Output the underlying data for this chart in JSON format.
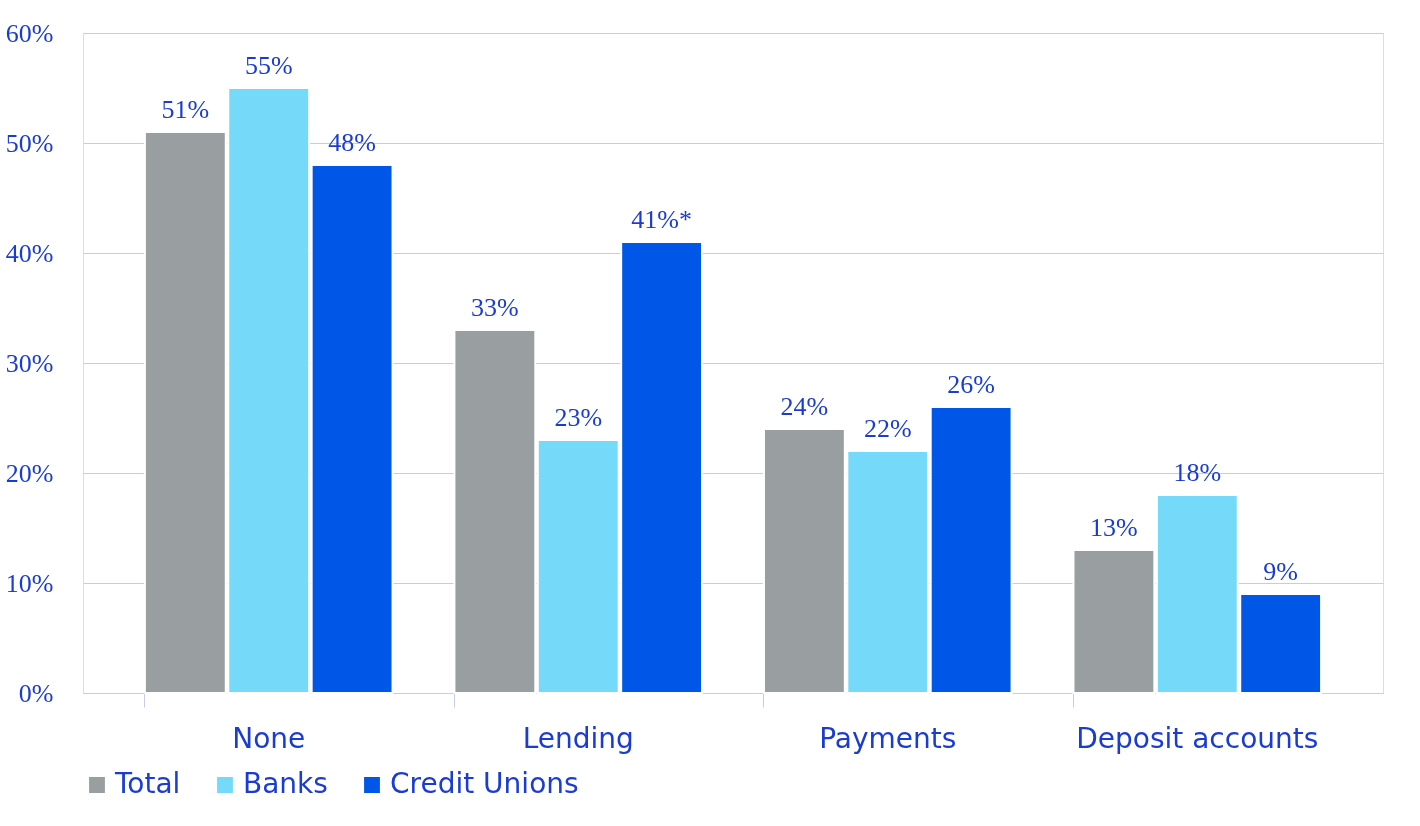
{
  "chart_data": {
    "type": "bar",
    "categories": [
      "None",
      "Lending",
      "Payments",
      "Deposit accounts"
    ],
    "series": [
      {
        "name": "Total",
        "color": "#999ea1",
        "values": [
          51,
          33,
          24,
          13
        ],
        "value_labels": [
          "51%",
          "33%",
          "24%",
          "13%"
        ]
      },
      {
        "name": "Banks",
        "color": "#75d9fa",
        "values": [
          55,
          23,
          22,
          18
        ],
        "value_labels": [
          "55%",
          "23%",
          "22%",
          "18%"
        ]
      },
      {
        "name": "Credit Unions",
        "color": "#0057e7",
        "values": [
          48,
          41,
          26,
          9
        ],
        "value_labels": [
          "48%",
          "41%*",
          "26%",
          "9%"
        ]
      }
    ],
    "ylim": [
      0,
      60
    ],
    "yticks": [
      {
        "value": 0,
        "label": "0%"
      },
      {
        "value": 10,
        "label": "10%"
      },
      {
        "value": 20,
        "label": "20%"
      },
      {
        "value": 30,
        "label": "30%"
      },
      {
        "value": 40,
        "label": "40%"
      },
      {
        "value": 50,
        "label": "50%"
      },
      {
        "value": 60,
        "label": "60%"
      }
    ],
    "grid": "y",
    "legend": "bottom"
  }
}
